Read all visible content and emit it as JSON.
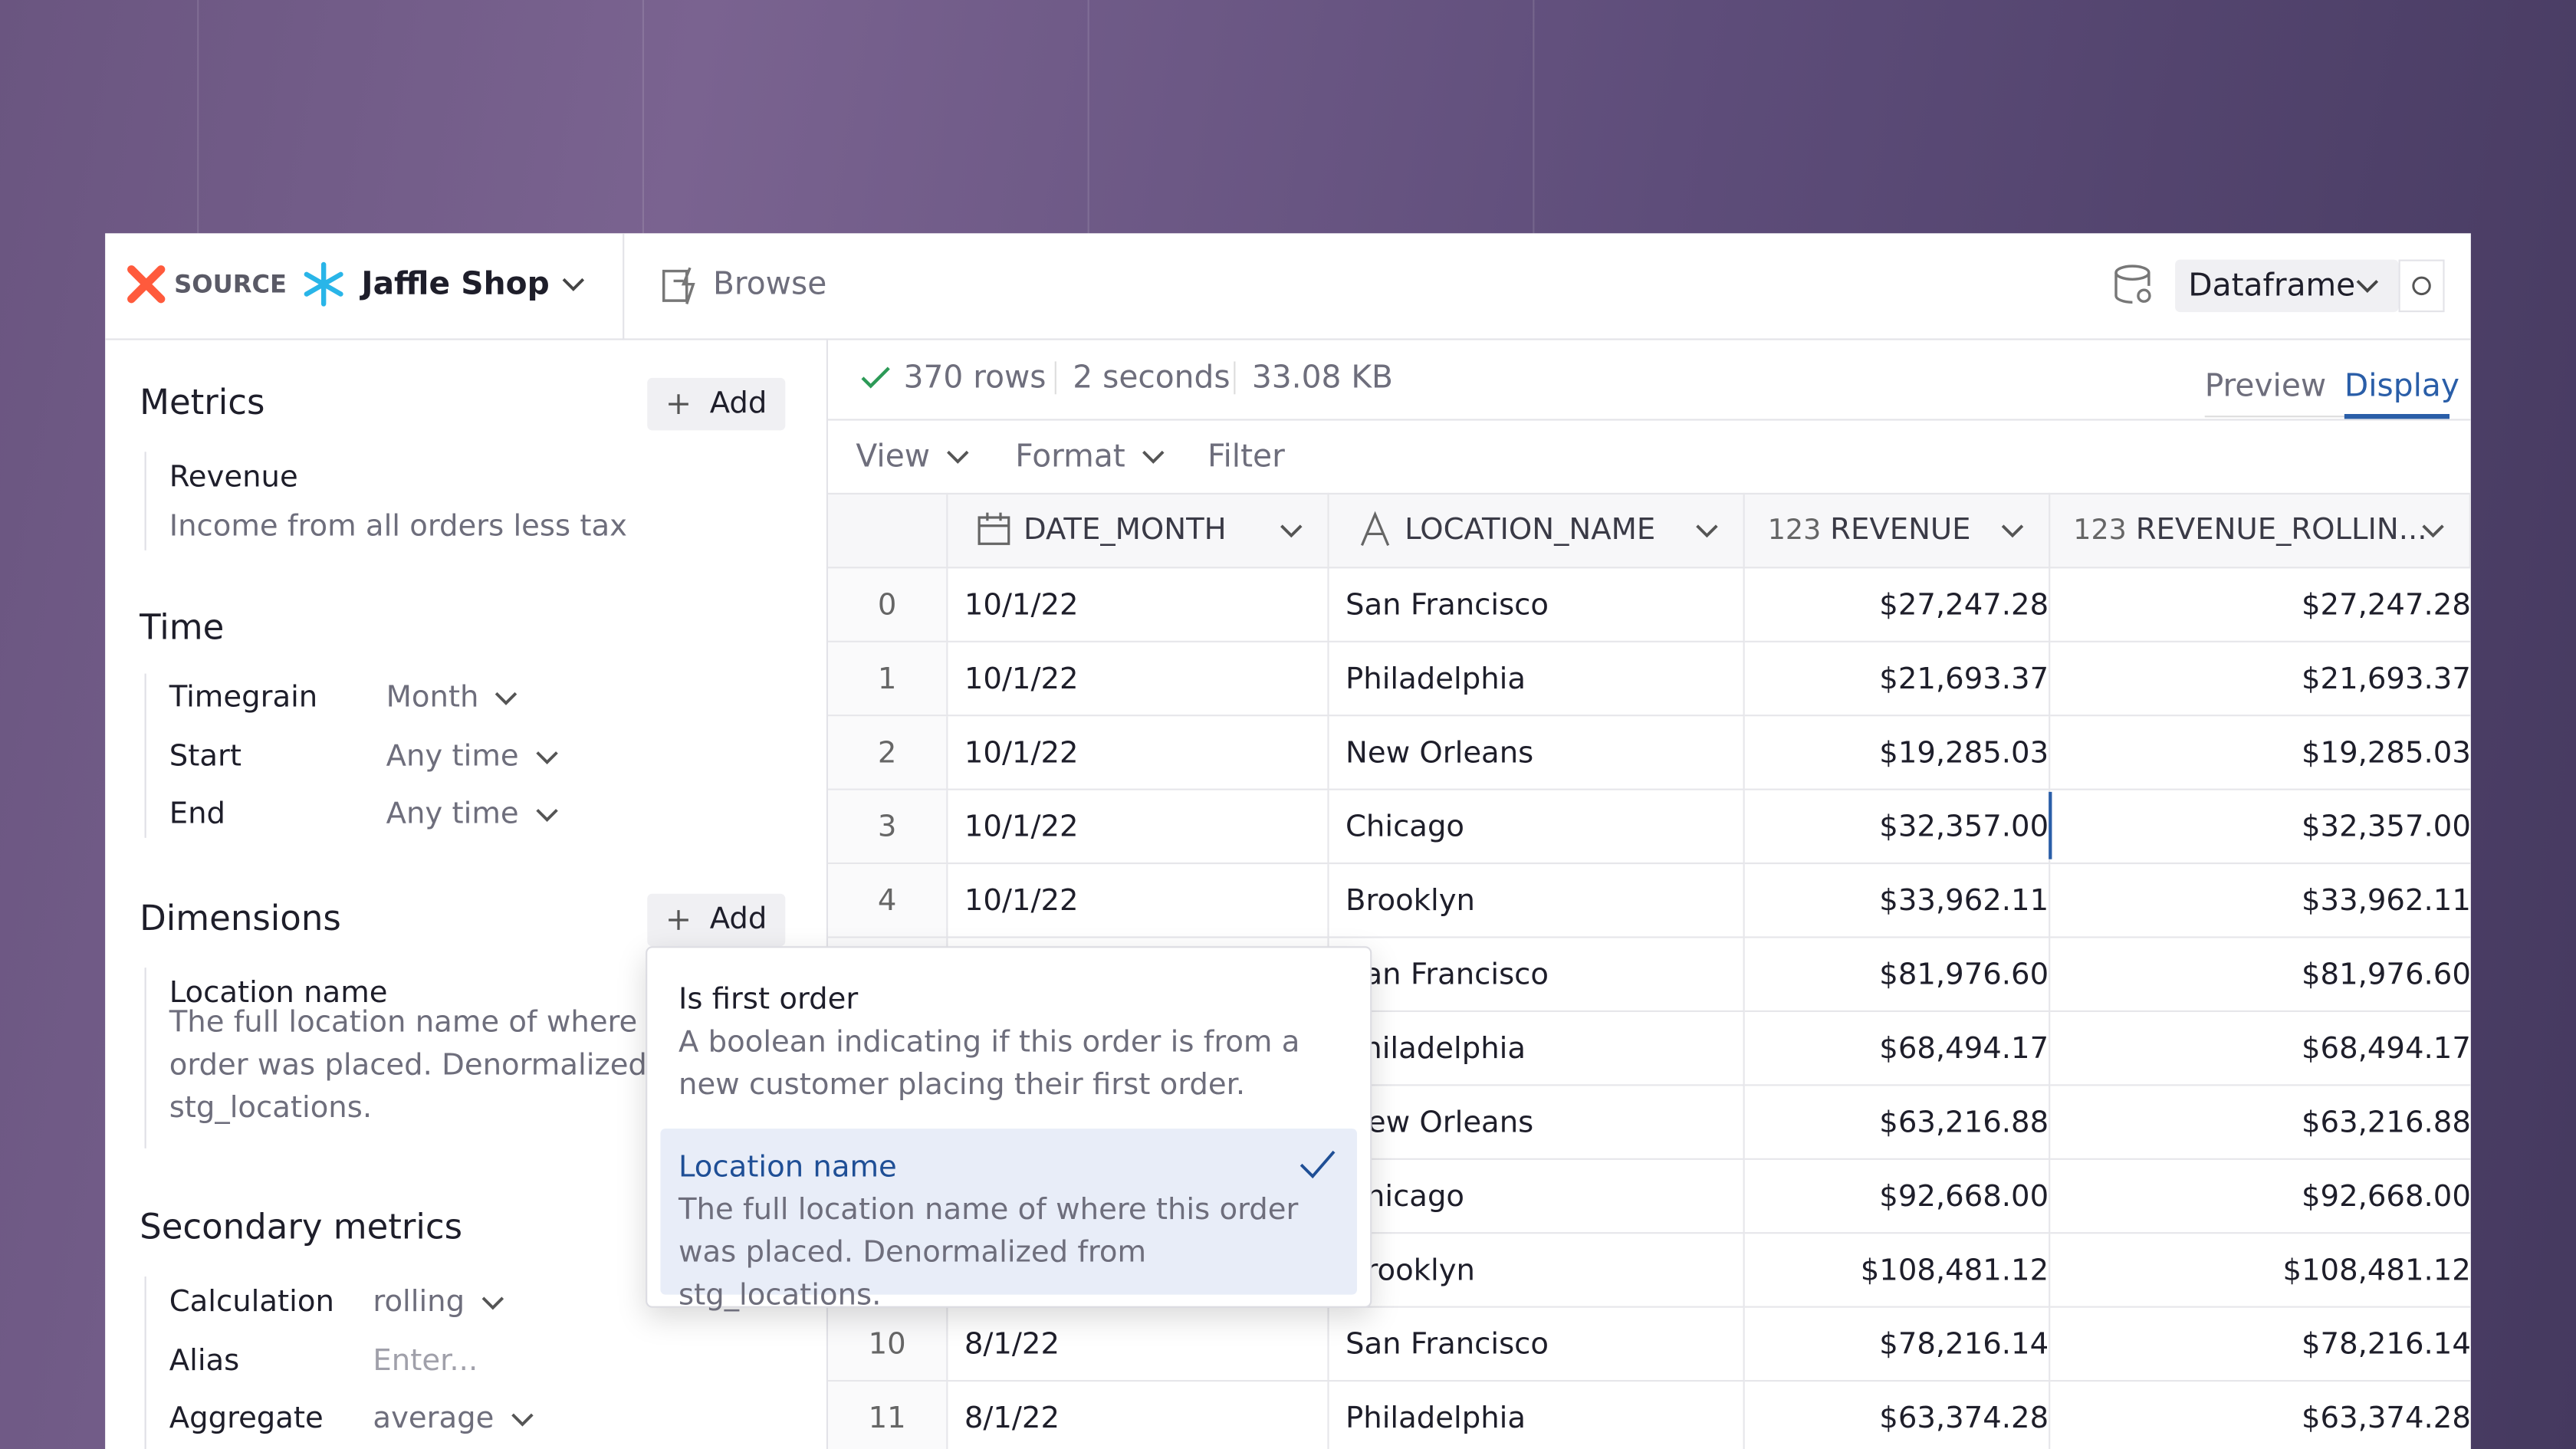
{
  "header": {
    "source_label": "SOURCE",
    "source_name": "Jaffle Shop",
    "browse": "Browse",
    "output": "Dataframe"
  },
  "sidebar": {
    "metrics": {
      "title": "Metrics",
      "add": "Add",
      "items": [
        {
          "name": "Revenue",
          "description": "Income from all orders less tax"
        }
      ]
    },
    "time": {
      "title": "Time",
      "fields": [
        {
          "label": "Timegrain",
          "value": "Month"
        },
        {
          "label": "Start",
          "value": "Any time"
        },
        {
          "label": "End",
          "value": "Any time"
        }
      ]
    },
    "dimensions": {
      "title": "Dimensions",
      "add": "Add",
      "items": [
        {
          "name": "Location name",
          "description": "The full location name of where this order was placed. Denormalized from stg_locations."
        }
      ]
    },
    "secondary_metrics": {
      "title": "Secondary metrics",
      "fields": [
        {
          "label": "Calculation",
          "value": "rolling"
        },
        {
          "label": "Alias",
          "placeholder": "Enter..."
        },
        {
          "label": "Aggregate",
          "value": "average"
        }
      ]
    }
  },
  "results": {
    "rows": "370 rows",
    "duration": "2 seconds",
    "size": "33.08 KB",
    "tabs": [
      "Preview",
      "Display"
    ],
    "toolbar": [
      "View",
      "Format",
      "Filter"
    ]
  },
  "table": {
    "columns": [
      {
        "name": "DATE_MONTH"
      },
      {
        "name": "LOCATION_NAME"
      },
      {
        "type_label": "123",
        "name": "REVENUE"
      },
      {
        "type_label": "123",
        "name": "REVENUE_ROLLIN..."
      }
    ],
    "rows": [
      [
        0,
        "10/1/22",
        "San Francisco",
        "$27,247.28",
        "$27,247.28"
      ],
      [
        1,
        "10/1/22",
        "Philadelphia",
        "$21,693.37",
        "$21,693.37"
      ],
      [
        2,
        "10/1/22",
        "New Orleans",
        "$19,285.03",
        "$19,285.03"
      ],
      [
        3,
        "10/1/22",
        "Chicago",
        "$32,357.00",
        "$32,357.00"
      ],
      [
        4,
        "10/1/22",
        "Brooklyn",
        "$33,962.11",
        "$33,962.11"
      ],
      [
        null,
        null,
        "San Francisco",
        "$81,976.60",
        "$81,976.60"
      ],
      [
        null,
        null,
        "Philadelphia",
        "$68,494.17",
        "$68,494.17"
      ],
      [
        null,
        null,
        "New Orleans",
        "$63,216.88",
        "$63,216.88"
      ],
      [
        null,
        null,
        "Chicago",
        "$92,668.00",
        "$92,668.00"
      ],
      [
        null,
        null,
        "Brooklyn",
        "$108,481.12",
        "$108,481.12"
      ],
      [
        10,
        "8/1/22",
        "San Francisco",
        "$78,216.14",
        "$78,216.14"
      ],
      [
        11,
        "8/1/22",
        "Philadelphia",
        "$63,374.28",
        "$63,374.28"
      ]
    ]
  },
  "dropdown": {
    "options": [
      {
        "name": "Is first order",
        "description": "A boolean indicating if this order is from a new customer placing their first order."
      },
      {
        "name": "Location name",
        "description": "The full location name of where this order was placed. Denormalized from stg_locations."
      }
    ]
  }
}
